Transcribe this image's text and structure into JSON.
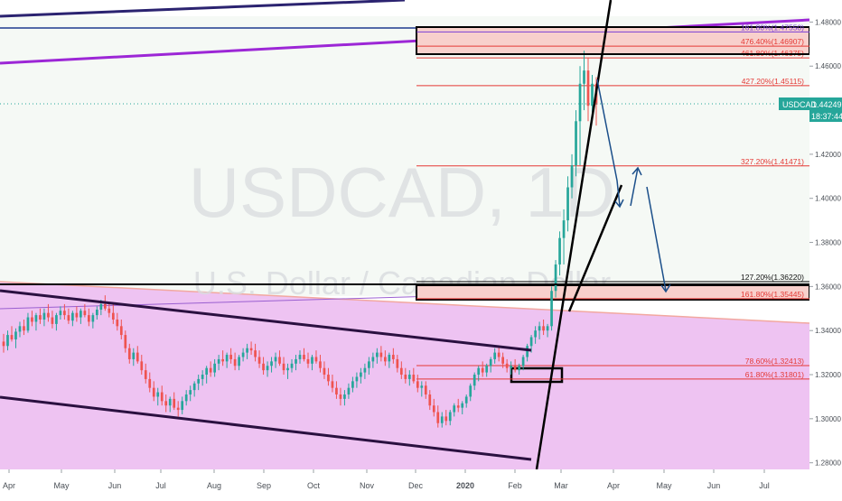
{
  "chart_data": {
    "type": "candlestick",
    "symbol_watermark": "USDCAD, 1D",
    "subtitle_watermark": "U.S. Dollar / Canadian Dollar",
    "price_axis": {
      "ticks": [
        "1.48000",
        "1.46000",
        "1.44000",
        "1.42000",
        "1.40000",
        "1.38000",
        "1.36000",
        "1.34000",
        "1.32000",
        "1.30000",
        "1.28000"
      ],
      "ylim": [
        1.277,
        1.49
      ]
    },
    "time_axis": {
      "ticks": [
        "Apr",
        "May",
        "Jun",
        "Jul",
        "Aug",
        "Sep",
        "Oct",
        "Nov",
        "Dec",
        "2020",
        "Feb",
        "Mar",
        "Apr",
        "May",
        "Jun",
        "Jul"
      ]
    },
    "price_label": {
      "symbol": "USDCAD",
      "value": "1.44249",
      "countdown": "18:37:44"
    },
    "fib_levels": [
      {
        "label": "161.80%(1.47550)",
        "price": 1.4755,
        "color": "#7b3fd6"
      },
      {
        "label": "476.40%(1.46907)",
        "price": 1.46907,
        "color": "#e53935"
      },
      {
        "label": "461.80%(1.46375)",
        "price": 1.46375,
        "color": "#e53935"
      },
      {
        "label": "427.20%(1.45115)",
        "price": 1.45115,
        "color": "#e53935"
      },
      {
        "label": "327.20%(1.41471)",
        "price": 1.41471,
        "color": "#e53935"
      },
      {
        "label": "127.20%(1.36220)",
        "price": 1.3622,
        "color": "#000000"
      },
      {
        "label": "161.80%(1.35445)",
        "price": 1.35445,
        "color": "#e53935"
      },
      {
        "label": "78.60%(1.32413)",
        "price": 1.32413,
        "color": "#e53935"
      },
      {
        "label": "61.80%(1.31801)",
        "price": 1.31801,
        "color": "#e53935"
      }
    ],
    "colors": {
      "up": "#26a69a",
      "down": "#ef5350",
      "channel_fill": "#eabdf0",
      "zone_fill": "#f8d0cc",
      "purple_line": "#9c27d6",
      "navy_line": "#2b2370",
      "projection": "#1b4f8a",
      "last_price_bg": "#26a69a"
    },
    "candles": [
      [
        1.335,
        1.3385,
        1.33,
        1.333
      ],
      [
        1.333,
        1.34,
        1.331,
        1.338
      ],
      [
        1.338,
        1.342,
        1.335,
        1.336
      ],
      [
        1.336,
        1.341,
        1.332,
        1.3395
      ],
      [
        1.3395,
        1.344,
        1.337,
        1.342
      ],
      [
        1.342,
        1.345,
        1.338,
        1.34
      ],
      [
        1.34,
        1.348,
        1.339,
        1.346
      ],
      [
        1.346,
        1.349,
        1.342,
        1.344
      ],
      [
        1.344,
        1.348,
        1.34,
        1.347
      ],
      [
        1.347,
        1.35,
        1.343,
        1.345
      ],
      [
        1.345,
        1.35,
        1.342,
        1.348
      ],
      [
        1.348,
        1.352,
        1.344,
        1.346
      ],
      [
        1.346,
        1.349,
        1.341,
        1.343
      ],
      [
        1.343,
        1.348,
        1.34,
        1.347
      ],
      [
        1.347,
        1.351,
        1.345,
        1.349
      ],
      [
        1.349,
        1.352,
        1.345,
        1.347
      ],
      [
        1.347,
        1.35,
        1.343,
        1.3445
      ],
      [
        1.3445,
        1.349,
        1.342,
        1.348
      ],
      [
        1.348,
        1.351,
        1.344,
        1.346
      ],
      [
        1.346,
        1.35,
        1.343,
        1.349
      ],
      [
        1.349,
        1.352,
        1.346,
        1.347
      ],
      [
        1.347,
        1.35,
        1.342,
        1.344
      ],
      [
        1.344,
        1.348,
        1.341,
        1.347
      ],
      [
        1.347,
        1.351,
        1.345,
        1.3495
      ],
      [
        1.3495,
        1.354,
        1.347,
        1.352
      ],
      [
        1.352,
        1.356,
        1.349,
        1.35
      ],
      [
        1.35,
        1.353,
        1.346,
        1.348
      ],
      [
        1.348,
        1.352,
        1.343,
        1.345
      ],
      [
        1.345,
        1.348,
        1.34,
        1.342
      ],
      [
        1.342,
        1.345,
        1.336,
        1.338
      ],
      [
        1.338,
        1.34,
        1.33,
        1.332
      ],
      [
        1.332,
        1.334,
        1.325,
        1.327
      ],
      [
        1.327,
        1.332,
        1.324,
        1.33
      ],
      [
        1.33,
        1.333,
        1.325,
        1.326
      ],
      [
        1.326,
        1.329,
        1.32,
        1.322
      ],
      [
        1.322,
        1.325,
        1.316,
        1.318
      ],
      [
        1.318,
        1.321,
        1.312,
        1.314
      ],
      [
        1.314,
        1.317,
        1.308,
        1.31
      ],
      [
        1.31,
        1.314,
        1.306,
        1.312
      ],
      [
        1.312,
        1.315,
        1.306,
        1.308
      ],
      [
        1.308,
        1.311,
        1.303,
        1.306
      ],
      [
        1.306,
        1.31,
        1.303,
        1.309
      ],
      [
        1.309,
        1.312,
        1.304,
        1.305
      ],
      [
        1.305,
        1.308,
        1.301,
        1.304
      ],
      [
        1.304,
        1.31,
        1.302,
        1.308
      ],
      [
        1.308,
        1.313,
        1.306,
        1.311
      ],
      [
        1.311,
        1.315,
        1.308,
        1.313
      ],
      [
        1.313,
        1.317,
        1.31,
        1.316
      ],
      [
        1.316,
        1.32,
        1.313,
        1.318
      ],
      [
        1.318,
        1.322,
        1.315,
        1.32
      ],
      [
        1.32,
        1.324,
        1.316,
        1.323
      ],
      [
        1.323,
        1.326,
        1.319,
        1.321
      ],
      [
        1.321,
        1.327,
        1.319,
        1.325
      ],
      [
        1.325,
        1.329,
        1.322,
        1.327
      ],
      [
        1.327,
        1.331,
        1.324,
        1.326
      ],
      [
        1.326,
        1.33,
        1.323,
        1.329
      ],
      [
        1.329,
        1.332,
        1.325,
        1.327
      ],
      [
        1.327,
        1.33,
        1.322,
        1.324
      ],
      [
        1.324,
        1.329,
        1.322,
        1.328
      ],
      [
        1.328,
        1.332,
        1.326,
        1.33
      ],
      [
        1.33,
        1.334,
        1.327,
        1.332
      ],
      [
        1.332,
        1.335,
        1.329,
        1.331
      ],
      [
        1.331,
        1.334,
        1.326,
        1.328
      ],
      [
        1.328,
        1.331,
        1.323,
        1.325
      ],
      [
        1.325,
        1.328,
        1.32,
        1.322
      ],
      [
        1.322,
        1.326,
        1.319,
        1.324
      ],
      [
        1.324,
        1.328,
        1.321,
        1.326
      ],
      [
        1.326,
        1.33,
        1.323,
        1.328
      ],
      [
        1.328,
        1.331,
        1.324,
        1.325
      ],
      [
        1.325,
        1.328,
        1.32,
        1.322
      ],
      [
        1.322,
        1.325,
        1.318,
        1.323
      ],
      [
        1.323,
        1.327,
        1.321,
        1.325
      ],
      [
        1.325,
        1.329,
        1.322,
        1.327
      ],
      [
        1.327,
        1.331,
        1.325,
        1.329
      ],
      [
        1.329,
        1.332,
        1.326,
        1.327
      ],
      [
        1.327,
        1.33,
        1.323,
        1.325
      ],
      [
        1.325,
        1.329,
        1.322,
        1.328
      ],
      [
        1.328,
        1.331,
        1.325,
        1.326
      ],
      [
        1.326,
        1.329,
        1.321,
        1.323
      ],
      [
        1.323,
        1.326,
        1.318,
        1.32
      ],
      [
        1.32,
        1.323,
        1.315,
        1.317
      ],
      [
        1.317,
        1.32,
        1.312,
        1.314
      ],
      [
        1.314,
        1.317,
        1.309,
        1.311
      ],
      [
        1.311,
        1.314,
        1.306,
        1.309
      ],
      [
        1.309,
        1.313,
        1.306,
        1.311
      ],
      [
        1.311,
        1.316,
        1.309,
        1.314
      ],
      [
        1.314,
        1.319,
        1.312,
        1.317
      ],
      [
        1.317,
        1.321,
        1.314,
        1.319
      ],
      [
        1.319,
        1.323,
        1.316,
        1.321
      ],
      [
        1.321,
        1.325,
        1.318,
        1.323
      ],
      [
        1.323,
        1.328,
        1.32,
        1.326
      ],
      [
        1.326,
        1.33,
        1.323,
        1.328
      ],
      [
        1.328,
        1.332,
        1.325,
        1.33
      ],
      [
        1.33,
        1.333,
        1.326,
        1.328
      ],
      [
        1.328,
        1.331,
        1.324,
        1.326
      ],
      [
        1.326,
        1.33,
        1.323,
        1.329
      ],
      [
        1.329,
        1.332,
        1.325,
        1.327
      ],
      [
        1.327,
        1.329,
        1.321,
        1.323
      ],
      [
        1.323,
        1.326,
        1.318,
        1.32
      ],
      [
        1.32,
        1.323,
        1.316,
        1.318
      ],
      [
        1.318,
        1.322,
        1.315,
        1.32
      ],
      [
        1.32,
        1.323,
        1.316,
        1.317
      ],
      [
        1.317,
        1.32,
        1.312,
        1.314
      ],
      [
        1.314,
        1.317,
        1.31,
        1.315
      ],
      [
        1.315,
        1.317,
        1.309,
        1.311
      ],
      [
        1.311,
        1.313,
        1.304,
        1.306
      ],
      [
        1.306,
        1.309,
        1.301,
        1.303
      ],
      [
        1.303,
        1.306,
        1.296,
        1.298
      ],
      [
        1.298,
        1.303,
        1.296,
        1.301
      ],
      [
        1.301,
        1.304,
        1.297,
        1.299
      ],
      [
        1.299,
        1.304,
        1.297,
        1.303
      ],
      [
        1.303,
        1.307,
        1.301,
        1.306
      ],
      [
        1.306,
        1.309,
        1.303,
        1.305
      ],
      [
        1.305,
        1.308,
        1.302,
        1.307
      ],
      [
        1.307,
        1.311,
        1.305,
        1.31
      ],
      [
        1.31,
        1.316,
        1.308,
        1.315
      ],
      [
        1.315,
        1.321,
        1.313,
        1.32
      ],
      [
        1.32,
        1.324,
        1.317,
        1.323
      ],
      [
        1.323,
        1.326,
        1.319,
        1.321
      ],
      [
        1.321,
        1.325,
        1.319,
        1.324
      ],
      [
        1.324,
        1.328,
        1.321,
        1.327
      ],
      [
        1.327,
        1.332,
        1.325,
        1.33
      ],
      [
        1.33,
        1.333,
        1.326,
        1.328
      ],
      [
        1.328,
        1.33,
        1.323,
        1.325
      ],
      [
        1.325,
        1.327,
        1.321,
        1.323
      ],
      [
        1.323,
        1.326,
        1.32,
        1.324
      ],
      [
        1.324,
        1.327,
        1.321,
        1.322
      ],
      [
        1.322,
        1.325,
        1.32,
        1.324
      ],
      [
        1.324,
        1.329,
        1.322,
        1.328
      ],
      [
        1.328,
        1.334,
        1.326,
        1.333
      ],
      [
        1.333,
        1.338,
        1.33,
        1.337
      ],
      [
        1.337,
        1.342,
        1.334,
        1.34
      ],
      [
        1.34,
        1.344,
        1.336,
        1.342
      ],
      [
        1.342,
        1.345,
        1.338,
        1.34
      ],
      [
        1.34,
        1.343,
        1.337,
        1.342
      ],
      [
        1.342,
        1.36,
        1.34,
        1.358
      ],
      [
        1.358,
        1.372,
        1.355,
        1.37
      ],
      [
        1.37,
        1.385,
        1.365,
        1.382
      ],
      [
        1.382,
        1.395,
        1.37,
        1.39
      ],
      [
        1.39,
        1.41,
        1.385,
        1.405
      ],
      [
        1.405,
        1.42,
        1.4,
        1.415
      ],
      [
        1.415,
        1.44,
        1.41,
        1.435
      ],
      [
        1.435,
        1.46,
        1.415,
        1.452
      ],
      [
        1.452,
        1.467,
        1.44,
        1.458
      ],
      [
        1.458,
        1.464,
        1.435,
        1.442
      ],
      [
        1.442,
        1.456,
        1.438,
        1.452
      ],
      [
        1.452,
        1.455,
        1.433,
        1.4425
      ]
    ]
  }
}
